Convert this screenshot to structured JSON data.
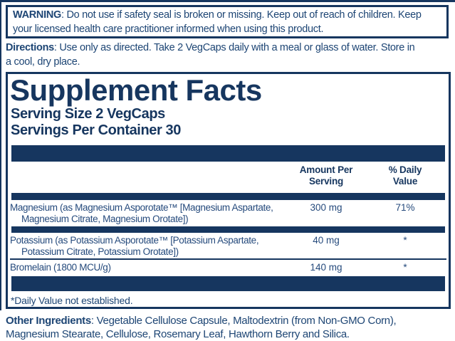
{
  "label": {
    "warning": {
      "label": "WARNING",
      "line1": ": Do not use if safety seal is broken or missing. Keep out of reach of children. Keep",
      "line2": "your licensed health care practitioner informed when using this product."
    },
    "directions": {
      "label": "Directions",
      "line1": ": Use only as directed. Take 2 VegCaps daily with a meal or glass of water. Store in",
      "line2": "a cool, dry place."
    },
    "other_ingredients": {
      "label": "Other Ingredients",
      "line1": ": Vegetable Cellulose Capsule, Maltodextrin (from Non-GMO Corn),",
      "line2": "Magnesium Stearate, Cellulose, Rosemary Leaf, Hawthorn Berry and Silica."
    }
  },
  "facts": {
    "title": "Supplement Facts",
    "serving_size": "Serving Size 2 VegCaps",
    "servings_per_container": "Servings Per Container 30",
    "columns": {
      "amount_line1": "Amount Per",
      "amount_line2": "Serving",
      "dv_line1": "% Daily",
      "dv_line2": "Value"
    },
    "rows": [
      {
        "name_line1": "Magnesium (as Magnesium Asporotate™ [Magnesium Aspartate,",
        "name_line2": "Magnesium Citrate, Magnesium Orotate])",
        "amount": "300 mg",
        "daily_value": "71%"
      },
      {
        "name_line1": "Potassium  (as Potassium Asporotate™ [Potassium Aspartate,",
        "name_line2": "Potassium Citrate, Potassium Orotate])",
        "amount": "40 mg",
        "daily_value": "*"
      },
      {
        "name_line1": "Bromelain (1800 MCU/g)",
        "name_line2": "",
        "amount": "140 mg",
        "daily_value": "*"
      }
    ],
    "footnote": "*Daily Value not established."
  },
  "colors": {
    "navy": "#16365f",
    "body_text": "#1d4574",
    "row_text": "#254a7c",
    "background": "#ffffff"
  }
}
